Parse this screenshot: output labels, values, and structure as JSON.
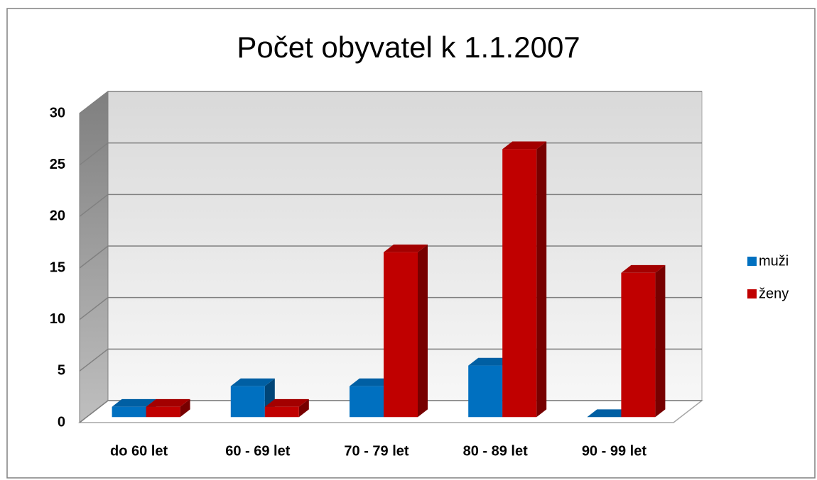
{
  "chart_data": {
    "type": "bar3d",
    "title": "Počet obyvatel k 1.1.2007",
    "categories": [
      "do 60 let",
      "60 - 69 let",
      "70 - 79 let",
      "80 - 89 let",
      "90 - 99 let"
    ],
    "series": [
      {
        "name": "muži",
        "color": "#0070c0",
        "values": [
          1,
          3,
          3,
          5,
          0
        ]
      },
      {
        "name": "ženy",
        "color": "#c00000",
        "values": [
          1,
          1,
          16,
          26,
          14
        ]
      }
    ],
    "ylim": [
      0,
      30
    ],
    "yticks": [
      0,
      5,
      10,
      15,
      20,
      25,
      30
    ],
    "grid": true,
    "legend": "right"
  }
}
